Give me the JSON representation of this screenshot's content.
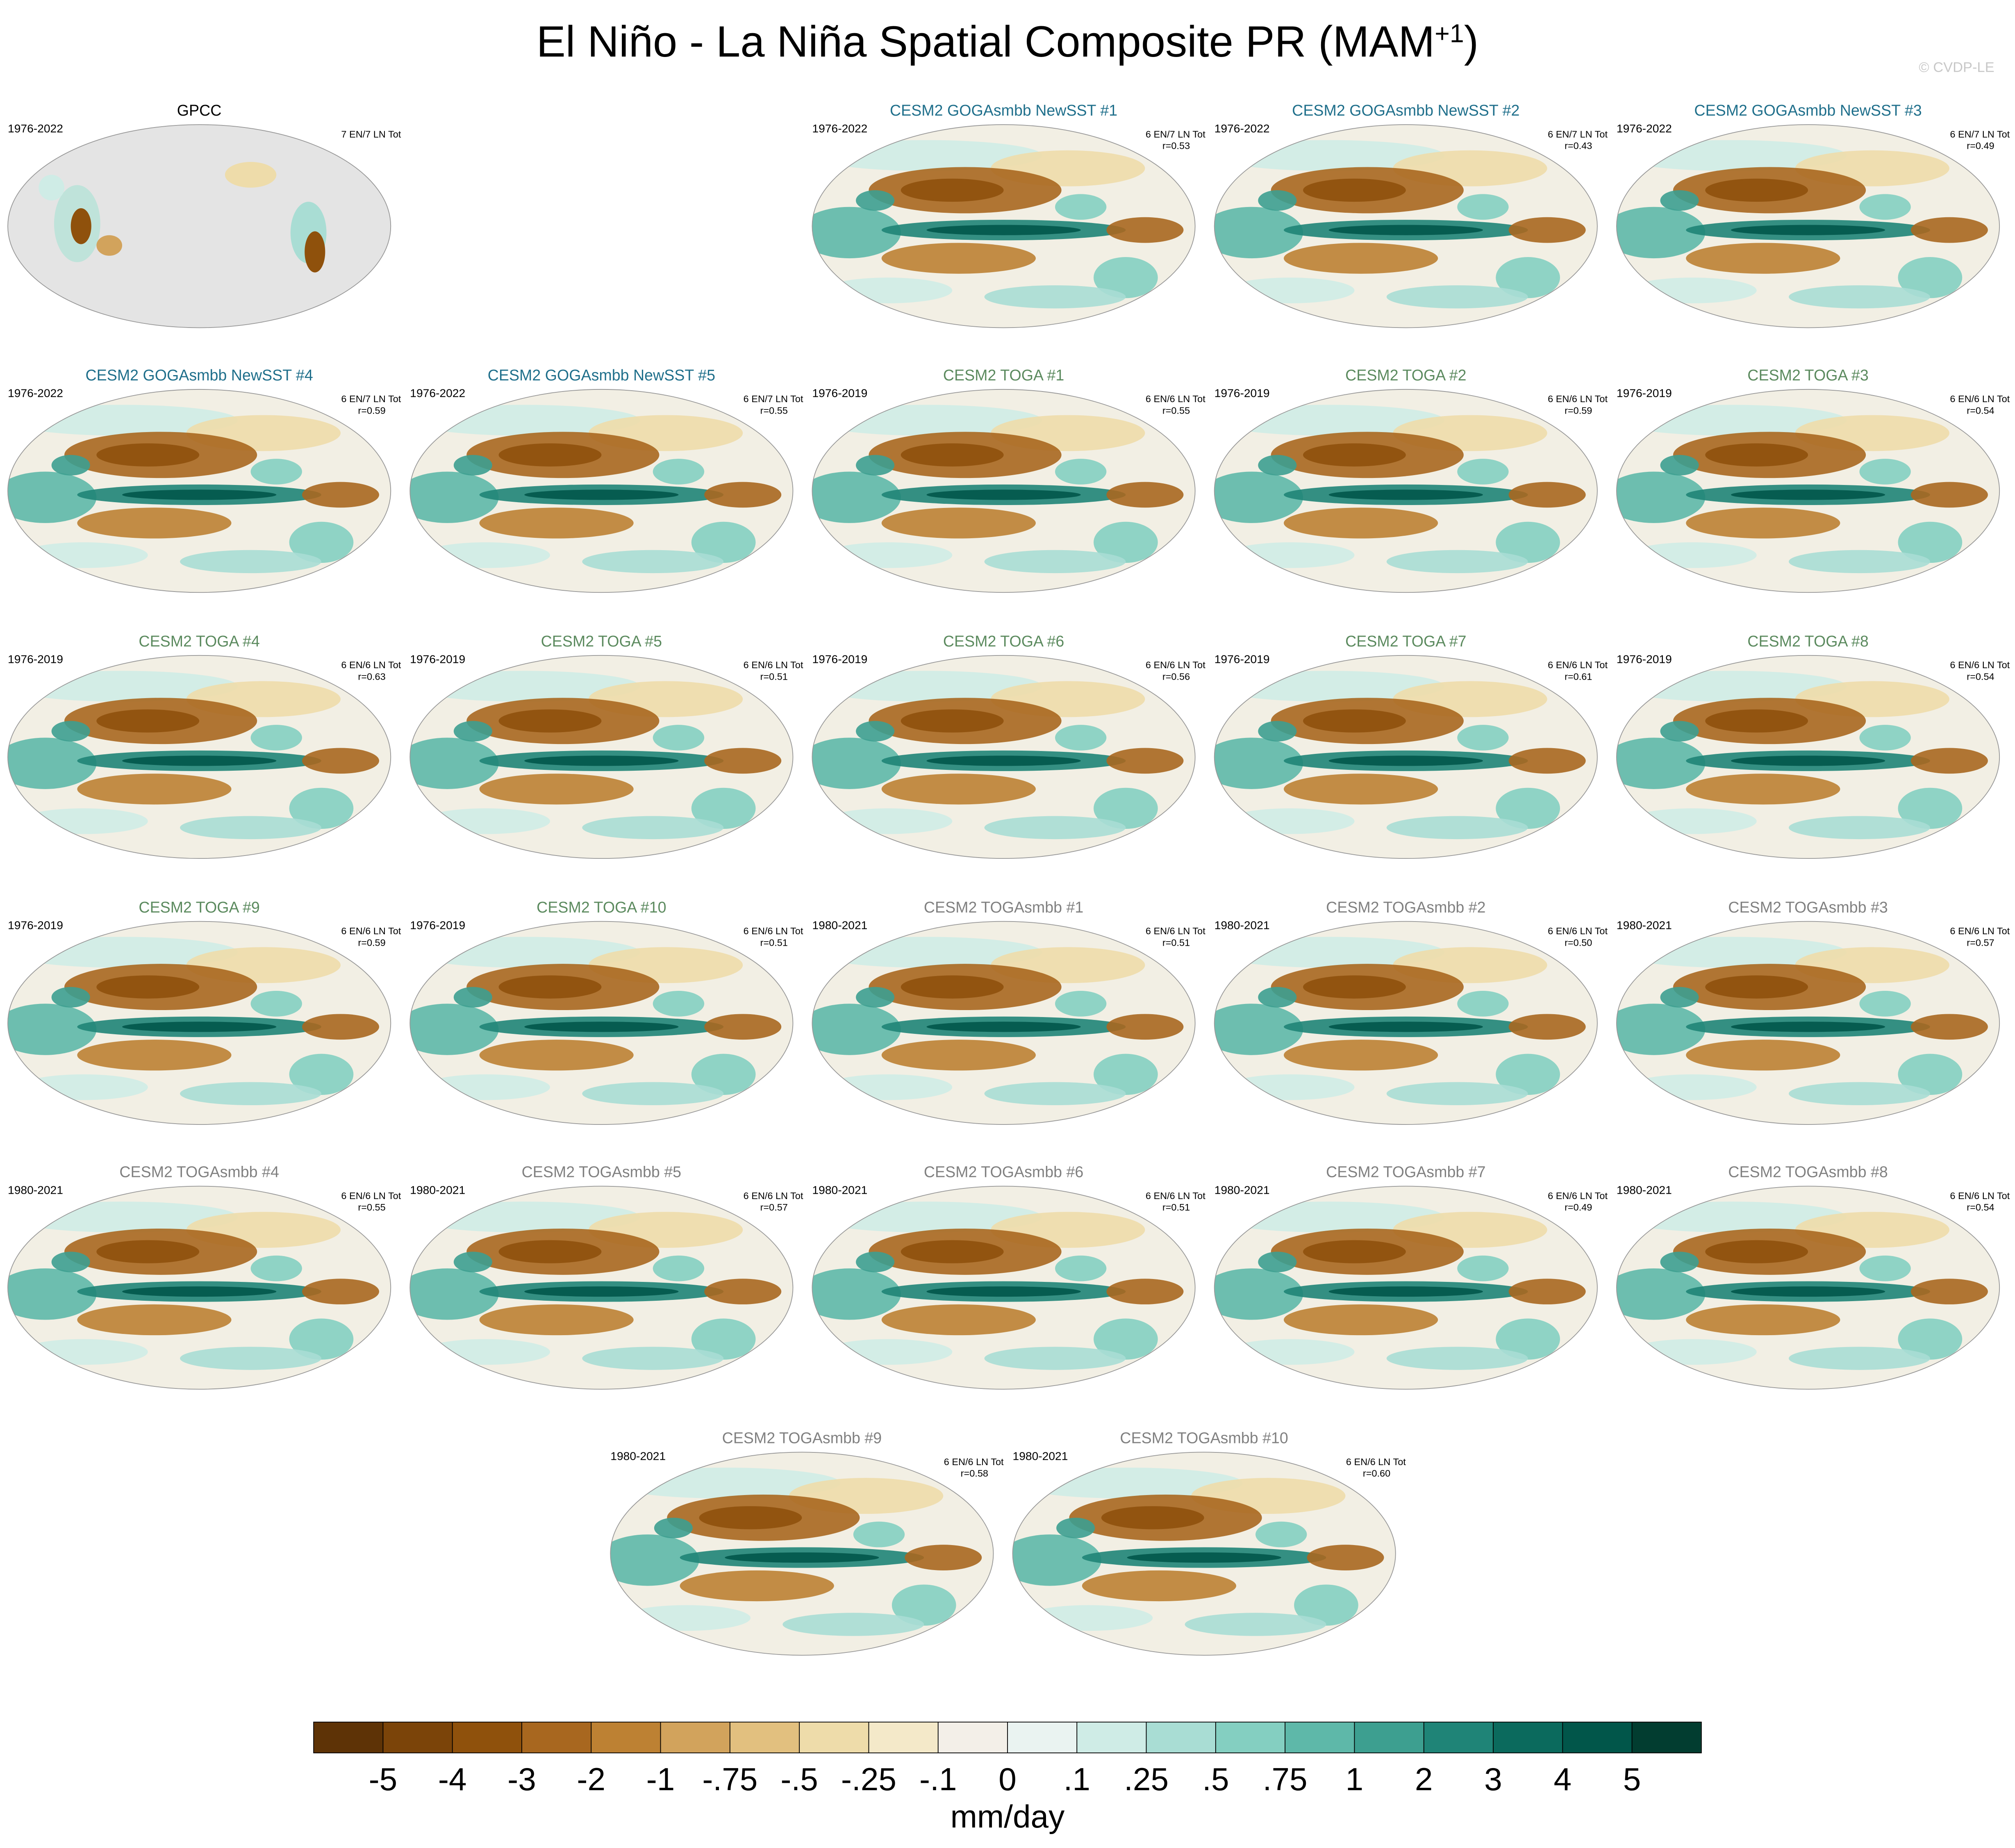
{
  "title": "El Niño - La Niña Spatial Composite PR (MAM",
  "title_superscript": "+1",
  "title_end": ")",
  "watermark": "© CVDP-LE",
  "panels": [
    {
      "title": "GPCC",
      "color": "#000000",
      "period": "1976-2022",
      "counts": "7 EN/7 LN Tot"
    },
    {
      "title": "CESM2 GOGAsmbb NewSST #1",
      "color": "#1f6f8b",
      "period": "1976-2022",
      "counts": "6 EN/7 LN Tot",
      "r": "r=0.53"
    },
    {
      "title": "CESM2 GOGAsmbb NewSST #2",
      "color": "#1f6f8b",
      "period": "1976-2022",
      "counts": "6 EN/7 LN Tot",
      "r": "r=0.43"
    },
    {
      "title": "CESM2 GOGAsmbb NewSST #3",
      "color": "#1f6f8b",
      "period": "1976-2022",
      "counts": "6 EN/7 LN Tot",
      "r": "r=0.49"
    },
    {
      "title": "CESM2 GOGAsmbb NewSST #4",
      "color": "#1f6f8b",
      "period": "1976-2022",
      "counts": "6 EN/7 LN Tot",
      "r": "r=0.59"
    },
    {
      "title": "CESM2 GOGAsmbb NewSST #5",
      "color": "#1f6f8b",
      "period": "1976-2022",
      "counts": "6 EN/7 LN Tot",
      "r": "r=0.55"
    },
    {
      "title": "CESM2 TOGA #1",
      "color": "#5b8a5e",
      "period": "1976-2019",
      "counts": "6 EN/6 LN Tot",
      "r": "r=0.55"
    },
    {
      "title": "CESM2 TOGA #2",
      "color": "#5b8a5e",
      "period": "1976-2019",
      "counts": "6 EN/6 LN Tot",
      "r": "r=0.59"
    },
    {
      "title": "CESM2 TOGA #3",
      "color": "#5b8a5e",
      "period": "1976-2019",
      "counts": "6 EN/6 LN Tot",
      "r": "r=0.54"
    },
    {
      "title": "CESM2 TOGA #4",
      "color": "#5b8a5e",
      "period": "1976-2019",
      "counts": "6 EN/6 LN Tot",
      "r": "r=0.63"
    },
    {
      "title": "CESM2 TOGA #5",
      "color": "#5b8a5e",
      "period": "1976-2019",
      "counts": "6 EN/6 LN Tot",
      "r": "r=0.51"
    },
    {
      "title": "CESM2 TOGA #6",
      "color": "#5b8a5e",
      "period": "1976-2019",
      "counts": "6 EN/6 LN Tot",
      "r": "r=0.56"
    },
    {
      "title": "CESM2 TOGA #7",
      "color": "#5b8a5e",
      "period": "1976-2019",
      "counts": "6 EN/6 LN Tot",
      "r": "r=0.61"
    },
    {
      "title": "CESM2 TOGA #8",
      "color": "#5b8a5e",
      "period": "1976-2019",
      "counts": "6 EN/6 LN Tot",
      "r": "r=0.54"
    },
    {
      "title": "CESM2 TOGA #9",
      "color": "#5b8a5e",
      "period": "1976-2019",
      "counts": "6 EN/6 LN Tot",
      "r": "r=0.59"
    },
    {
      "title": "CESM2 TOGA #10",
      "color": "#5b8a5e",
      "period": "1976-2019",
      "counts": "6 EN/6 LN Tot",
      "r": "r=0.51"
    },
    {
      "title": "CESM2 TOGAsmbb #1",
      "color": "#808080",
      "period": "1980-2021",
      "counts": "6 EN/6 LN Tot",
      "r": "r=0.51"
    },
    {
      "title": "CESM2 TOGAsmbb #2",
      "color": "#808080",
      "period": "1980-2021",
      "counts": "6 EN/6 LN Tot",
      "r": "r=0.50"
    },
    {
      "title": "CESM2 TOGAsmbb #3",
      "color": "#808080",
      "period": "1980-2021",
      "counts": "6 EN/6 LN Tot",
      "r": "r=0.57"
    },
    {
      "title": "CESM2 TOGAsmbb #4",
      "color": "#808080",
      "period": "1980-2021",
      "counts": "6 EN/6 LN Tot",
      "r": "r=0.55"
    },
    {
      "title": "CESM2 TOGAsmbb #5",
      "color": "#808080",
      "period": "1980-2021",
      "counts": "6 EN/6 LN Tot",
      "r": "r=0.57"
    },
    {
      "title": "CESM2 TOGAsmbb #6",
      "color": "#808080",
      "period": "1980-2021",
      "counts": "6 EN/6 LN Tot",
      "r": "r=0.51"
    },
    {
      "title": "CESM2 TOGAsmbb #7",
      "color": "#808080",
      "period": "1980-2021",
      "counts": "6 EN/6 LN Tot",
      "r": "r=0.49"
    },
    {
      "title": "CESM2 TOGAsmbb #8",
      "color": "#808080",
      "period": "1980-2021",
      "counts": "6 EN/6 LN Tot",
      "r": "r=0.54"
    },
    {
      "title": "CESM2 TOGAsmbb #9",
      "color": "#808080",
      "period": "1980-2021",
      "counts": "6 EN/6 LN Tot",
      "r": "r=0.58"
    },
    {
      "title": "CESM2 TOGAsmbb #10",
      "color": "#808080",
      "period": "1980-2021",
      "counts": "6 EN/6 LN Tot",
      "r": "r=0.60"
    }
  ],
  "colorbar": {
    "label": "mm/day",
    "colors": [
      "#5e3306",
      "#7b4409",
      "#8f510c",
      "#a8671f",
      "#bd8133",
      "#d2a35c",
      "#e2c07f",
      "#eedcaa",
      "#f4e9c9",
      "#f3efe8",
      "#eaf3f1",
      "#cfece6",
      "#a9ddd4",
      "#84cfc1",
      "#5eb8a9",
      "#3d9f90",
      "#1f8477",
      "#0b6a5d",
      "#01564a",
      "#023d30"
    ],
    "ticks": [
      -5,
      -4,
      -3,
      -2,
      -1,
      {
        "value": -0.75,
        "label": "-.75"
      },
      {
        "value": -0.5,
        "label": "-.5"
      },
      {
        "value": -0.25,
        "label": "-.25"
      },
      {
        "value": -0.1,
        "label": "-.1"
      },
      0,
      {
        "value": 0.1,
        "label": ".1"
      },
      {
        "value": 0.25,
        "label": ".25"
      },
      {
        "value": 0.5,
        "label": ".5"
      },
      {
        "value": 0.75,
        "label": ".75"
      },
      1,
      2,
      3,
      4,
      5
    ]
  }
}
